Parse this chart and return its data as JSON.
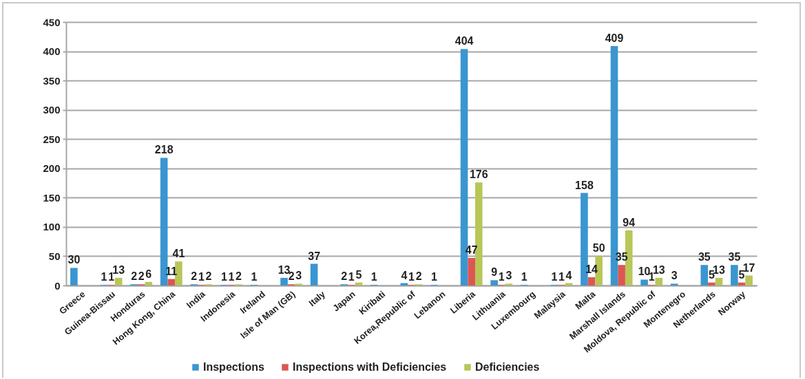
{
  "chart_data": {
    "type": "bar",
    "categories": [
      "Greece",
      "Guinea-Bissau",
      "Honduras",
      "Hong Kong, China",
      "India",
      "Indonesia",
      "Ireland",
      "Isle of Man (GB)",
      "Italy",
      "Japan",
      "Kiribati",
      "Korea,Republic of",
      "Lebanon",
      "Liberia",
      "Lithuania",
      "Luxembourg",
      "Malaysia",
      "Malta",
      "Marshall Islands",
      "Moldova, Republic of",
      "Montenegro",
      "Netherlands",
      "Norway"
    ],
    "series": [
      {
        "name": "Inspections",
        "color": "#3a96d0",
        "values": [
          30,
          1,
          2,
          218,
          2,
          1,
          1,
          13,
          37,
          2,
          1,
          4,
          1,
          404,
          9,
          1,
          1,
          158,
          409,
          10,
          3,
          35,
          35
        ]
      },
      {
        "name": "Inspections with Deficiencies",
        "color": "#dc5753",
        "values": [
          null,
          1,
          2,
          11,
          1,
          1,
          null,
          2,
          null,
          1,
          null,
          1,
          null,
          47,
          1,
          null,
          1,
          14,
          35,
          1,
          null,
          5,
          5
        ]
      },
      {
        "name": "Deficiencies",
        "color": "#b9c658",
        "values": [
          null,
          13,
          6,
          41,
          2,
          2,
          null,
          3,
          null,
          5,
          null,
          2,
          null,
          176,
          3,
          null,
          4,
          50,
          94,
          13,
          null,
          13,
          17
        ]
      }
    ],
    "ylim": [
      0,
      450
    ],
    "yticks": [
      0,
      50,
      100,
      150,
      200,
      250,
      300,
      350,
      400,
      450
    ],
    "grid": "y",
    "legend": "bottom",
    "data_labels": true
  }
}
